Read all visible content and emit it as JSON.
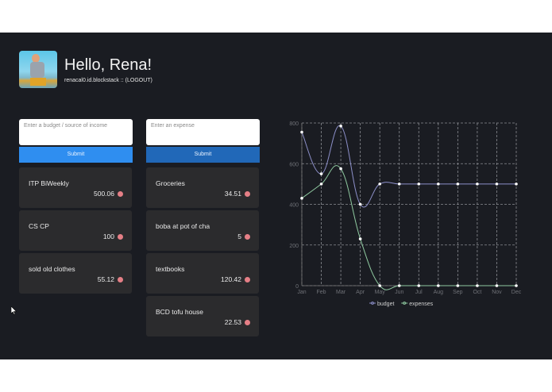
{
  "header": {
    "greeting": "Hello, Rena!",
    "user_id": "renacal0.id.blockstack :: (LOGOUT)"
  },
  "income": {
    "placeholder": "Enter a budget / source of income",
    "submit_label": "Submit",
    "items": [
      {
        "name": "ITP BiWeekly",
        "amount": "500.06"
      },
      {
        "name": "CS CP",
        "amount": "100"
      },
      {
        "name": "sold old clothes",
        "amount": "55.12"
      }
    ]
  },
  "expenses": {
    "placeholder": "Enter an expense",
    "submit_label": "Submit",
    "items": [
      {
        "name": "Groceries",
        "amount": "34.51"
      },
      {
        "name": "boba at pot of cha",
        "amount": "5"
      },
      {
        "name": "textbooks",
        "amount": "120.42"
      },
      {
        "name": "BCD tofu house",
        "amount": "22.53"
      }
    ]
  },
  "chart_data": {
    "type": "line",
    "title": "",
    "categories": [
      "Jan",
      "Feb",
      "Mar",
      "Apr",
      "May",
      "Jun",
      "Jul",
      "Aug",
      "Sep",
      "Oct",
      "Nov",
      "Dec"
    ],
    "series": [
      {
        "name": "budget",
        "color": "#8c8fc8",
        "values": [
          755,
          550,
          785,
          400,
          500,
          500,
          500,
          500,
          500,
          500,
          500,
          500
        ]
      },
      {
        "name": "expenses",
        "color": "#8fc9a0",
        "values": [
          430,
          500,
          575,
          230,
          0,
          0,
          0,
          0,
          0,
          0,
          0,
          0
        ]
      }
    ],
    "yticks": [
      "0",
      "200",
      "400",
      "600",
      "800"
    ],
    "ylim": [
      0,
      800
    ],
    "grid": true,
    "legend_position": "bottom",
    "xlabel": "",
    "ylabel": ""
  }
}
